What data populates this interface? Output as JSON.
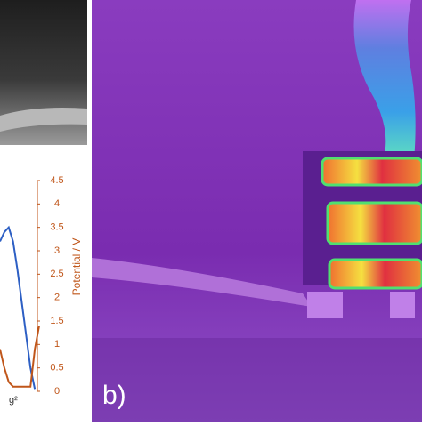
{
  "panel_label": "b)",
  "chart_data": {
    "type": "line",
    "categories": [
      null,
      null,
      null,
      null,
      null,
      null,
      null,
      null,
      null,
      null
    ],
    "x_label": "g²",
    "y2label": "Potential / V",
    "y2lim": [
      0,
      4.5
    ],
    "y2ticks": [
      0,
      0.5,
      1,
      1.5,
      2,
      2.5,
      3,
      3.5,
      4,
      4.5
    ],
    "axis_color": "#c0561a",
    "series": [
      {
        "color": "#2d5fc4",
        "axis": "y2",
        "values": [
          3.2,
          3.4,
          3.5,
          3.2,
          2.6,
          1.9,
          1.2,
          0.5,
          0.05,
          null
        ]
      },
      {
        "color": "#c0561a",
        "axis": "y2",
        "values": [
          0.9,
          0.5,
          0.2,
          0.1,
          0.1,
          0.1,
          0.1,
          0.1,
          0.9,
          1.4
        ]
      }
    ]
  }
}
